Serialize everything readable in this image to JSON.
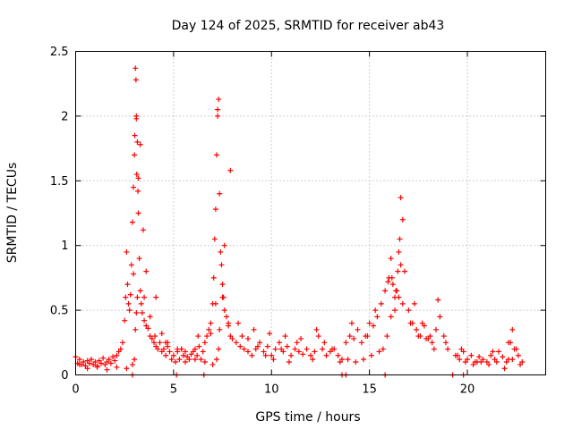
{
  "chart_data": {
    "type": "scatter",
    "title": "Day 124 of 2025, SRMTID for receiver ab43",
    "xlabel": "GPS time / hours",
    "ylabel": "SRMTID / TECUs",
    "xlim": [
      0,
      24
    ],
    "ylim": [
      0,
      2.5
    ],
    "xticks": [
      0,
      5,
      10,
      15,
      20
    ],
    "xtick_labels": [
      "0",
      "5",
      "10",
      "15",
      "20"
    ],
    "yticks": [
      0,
      0.5,
      1,
      1.5,
      2,
      2.5
    ],
    "ytick_labels": [
      "0",
      "0.5",
      "1",
      "1.5",
      "2",
      "2.5"
    ],
    "grid": true,
    "marker": "+",
    "color": "#ff0000",
    "series": [
      {
        "name": "SRMTID",
        "x": [
          0.0,
          0.1,
          0.2,
          0.3,
          0.4,
          0.5,
          0.6,
          0.7,
          0.8,
          0.9,
          1.0,
          1.1,
          1.2,
          1.3,
          1.4,
          1.5,
          1.6,
          1.7,
          1.8,
          1.9,
          2.0,
          2.1,
          2.2,
          2.3,
          2.4,
          2.5,
          2.55,
          2.6,
          2.65,
          2.7,
          2.75,
          2.8,
          2.85,
          2.9,
          2.95,
          3.0,
          3.02,
          3.05,
          3.08,
          3.1,
          3.12,
          3.15,
          3.18,
          3.2,
          3.25,
          3.3,
          3.35,
          3.4,
          3.5,
          3.6,
          3.7,
          3.8,
          3.9,
          4.0,
          4.1,
          4.2,
          4.3,
          4.4,
          4.5,
          4.6,
          4.7,
          4.8,
          4.9,
          5.0,
          5.1,
          5.2,
          5.3,
          5.4,
          5.5,
          5.6,
          5.7,
          5.8,
          5.9,
          6.0,
          6.1,
          6.2,
          6.3,
          6.4,
          6.5,
          6.6,
          6.7,
          6.8,
          6.9,
          7.0,
          7.05,
          7.1,
          7.15,
          7.2,
          7.25,
          7.3,
          7.35,
          7.4,
          7.45,
          7.5,
          7.55,
          7.6,
          7.7,
          7.8,
          7.9,
          8.0,
          8.2,
          8.4,
          8.6,
          8.8,
          9.0,
          9.2,
          9.4,
          9.6,
          9.8,
          10.0,
          10.2,
          10.4,
          10.6,
          10.8,
          11.0,
          11.2,
          11.4,
          11.6,
          11.8,
          12.0,
          12.2,
          12.4,
          12.6,
          12.8,
          13.0,
          13.2,
          13.4,
          13.6,
          13.8,
          14.0,
          14.2,
          14.4,
          14.6,
          14.8,
          15.0,
          15.2,
          15.4,
          15.6,
          15.8,
          16.0,
          16.1,
          16.2,
          16.3,
          16.4,
          16.45,
          16.5,
          16.55,
          16.6,
          16.7,
          16.8,
          17.0,
          17.2,
          17.4,
          17.6,
          17.8,
          18.0,
          18.2,
          18.4,
          18.6,
          18.8,
          19.0,
          19.4,
          19.6,
          19.8,
          20.0,
          20.2,
          20.4,
          20.6,
          20.8,
          21.0,
          21.2,
          21.4,
          21.6,
          21.8,
          22.0,
          22.1,
          22.2,
          22.3,
          22.4,
          22.6,
          22.8,
          0.2,
          0.6,
          1.1,
          1.6,
          2.1,
          2.6,
          2.9,
          3.0,
          3.05,
          3.1,
          3.15,
          3.2,
          3.3,
          3.45,
          3.6,
          3.8,
          4.1,
          4.4,
          4.7,
          5.2,
          5.6,
          6.1,
          6.6,
          7.0,
          7.2,
          7.3,
          7.35,
          7.5,
          7.6,
          7.9,
          8.3,
          8.8,
          9.3,
          9.7,
          10.1,
          10.5,
          10.9,
          11.5,
          12.1,
          12.7,
          13.5,
          13.9,
          14.3,
          14.7,
          15.1,
          15.5,
          15.7,
          15.9,
          16.1,
          16.3,
          16.5,
          16.7,
          17.1,
          17.5,
          17.9,
          18.3,
          18.5,
          18.9,
          19.5,
          19.9,
          20.3,
          20.7,
          21.1,
          21.5,
          21.9,
          22.3,
          22.7,
          2.95,
          3.1,
          3.5,
          4.05,
          4.6,
          5.4,
          6.25,
          6.9,
          7.15,
          7.25,
          7.8,
          8.5,
          9.1,
          9.9,
          10.7,
          11.3,
          12.3,
          13.1,
          14.1,
          14.9,
          15.3,
          15.95,
          16.15,
          16.35,
          16.6,
          17.3,
          17.7,
          18.1,
          19.7,
          20.5,
          21.3,
          22.1,
          22.5
        ],
        "y": [
          0.14,
          0.09,
          0.12,
          0.08,
          0.1,
          0.07,
          0.11,
          0.09,
          0.12,
          0.08,
          0.1,
          0.06,
          0.11,
          0.09,
          0.13,
          0.08,
          0.1,
          0.12,
          0.09,
          0.14,
          0.11,
          0.15,
          0.18,
          0.2,
          0.25,
          0.42,
          0.6,
          0.95,
          0.7,
          0.55,
          0.5,
          0.62,
          0.85,
          1.18,
          1.45,
          1.7,
          1.85,
          2.37,
          2.28,
          1.98,
          1.55,
          1.8,
          1.42,
          1.25,
          0.9,
          0.65,
          0.55,
          0.48,
          0.42,
          0.38,
          0.36,
          0.3,
          0.28,
          0.25,
          0.22,
          0.2,
          0.25,
          0.18,
          0.2,
          0.15,
          0.22,
          0.18,
          0.12,
          0.15,
          0.1,
          0.18,
          0.12,
          0.2,
          0.15,
          0.1,
          0.14,
          0.12,
          0.16,
          0.18,
          0.2,
          0.15,
          0.22,
          0.12,
          0.18,
          0.25,
          0.3,
          0.35,
          0.4,
          0.55,
          0.75,
          1.05,
          1.28,
          1.7,
          2.05,
          2.13,
          1.4,
          0.95,
          0.85,
          0.7,
          0.6,
          0.5,
          0.45,
          0.38,
          0.3,
          0.28,
          0.25,
          0.22,
          0.2,
          0.18,
          0.15,
          0.2,
          0.25,
          0.18,
          0.22,
          0.15,
          0.2,
          0.25,
          0.18,
          0.22,
          0.15,
          0.2,
          0.18,
          0.16,
          0.2,
          0.15,
          0.18,
          0.3,
          0.2,
          0.15,
          0.18,
          0.2,
          0.15,
          0.12,
          0.25,
          0.3,
          0.28,
          0.35,
          0.25,
          0.3,
          0.4,
          0.38,
          0.45,
          0.55,
          0.65,
          0.75,
          0.9,
          0.7,
          0.6,
          0.65,
          0.8,
          0.95,
          1.05,
          1.37,
          1.2,
          0.8,
          0.5,
          0.4,
          0.35,
          0.3,
          0.38,
          0.28,
          0.25,
          0.35,
          0.45,
          0.3,
          0.2,
          0.15,
          0.12,
          0.18,
          0.12,
          0.15,
          0.1,
          0.14,
          0.12,
          0.1,
          0.15,
          0.12,
          0.18,
          0.14,
          0.1,
          0.12,
          0.25,
          0.35,
          0.2,
          0.15,
          0.1,
          0.08,
          0.05,
          0.07,
          0.04,
          0.06,
          0.05,
          0.08,
          0.12,
          0.35,
          0.48,
          0.6,
          1.52,
          1.78,
          1.12,
          0.8,
          0.45,
          0.6,
          0.32,
          0.25,
          0.2,
          0.18,
          0.12,
          0.1,
          0.08,
          0.12,
          0.2,
          0.35,
          0.6,
          1.0,
          1.58,
          0.4,
          0.28,
          0.22,
          0.15,
          0.12,
          0.2,
          0.1,
          0.28,
          0.12,
          0.25,
          0.1,
          0.12,
          0.1,
          0.12,
          0.15,
          0.18,
          0.2,
          0.3,
          0.45,
          0.5,
          0.6,
          0.55,
          0.4,
          0.3,
          0.28,
          0.2,
          0.58,
          0.25,
          0.15,
          0.1,
          0.08,
          0.1,
          0.08,
          0.1,
          0.05,
          0.12,
          0.08,
          0.78,
          2.0,
          0.6,
          0.3,
          0.25,
          0.2,
          0.3,
          0.32,
          0.55,
          2.0,
          0.4,
          0.3,
          0.35,
          0.32,
          0.3,
          0.25,
          0.35,
          0.2,
          0.4,
          0.3,
          0.5,
          0.72,
          0.75,
          0.65,
          0.85,
          0.55,
          0.4,
          0.3,
          0.2,
          0.1,
          0.18,
          0.25,
          0.2
        ],
        "near_zero_markers": [
          2.9,
          5.15,
          6.55,
          13.6,
          13.8,
          15.8,
          19.25,
          19.8
        ]
      }
    ]
  }
}
